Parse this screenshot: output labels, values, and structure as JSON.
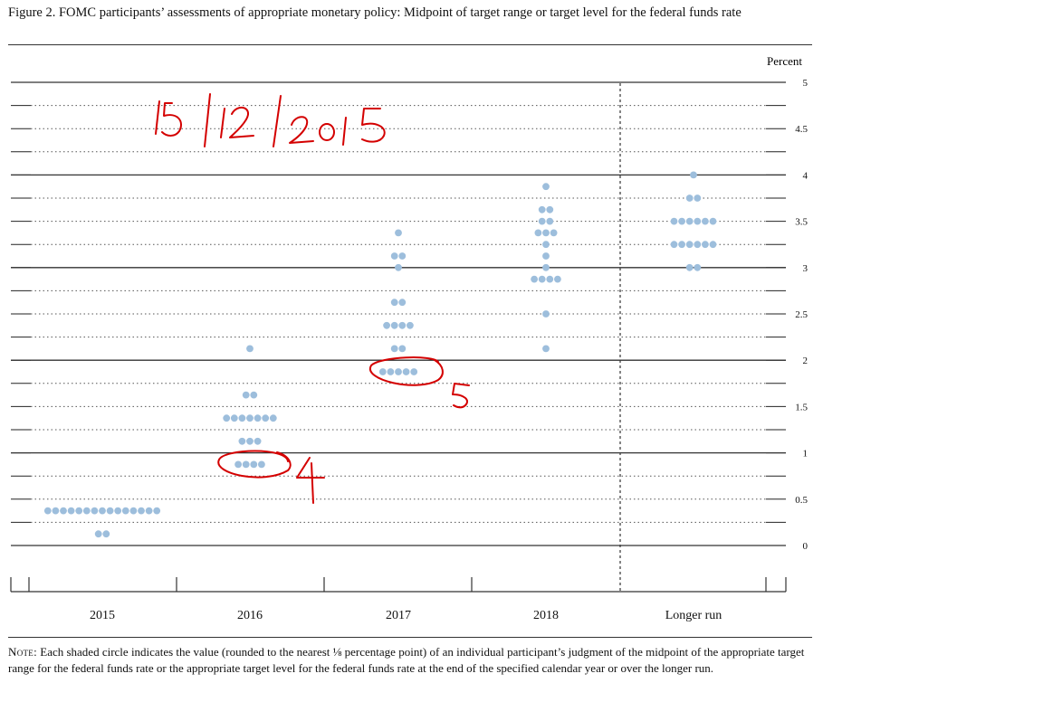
{
  "figure": {
    "title": "Figure 2. FOMC participants’ assessments of appropriate monetary policy: Midpoint of target range or target level for the federal funds rate",
    "note_lead": "Note:",
    "note_text": " Each shaded circle indicates the value (rounded to the nearest ⅛ percentage point) of an individual participant’s judgment of the midpoint of the appropriate target range for the federal funds rate or the appropriate target level for the federal funds rate at the end of the specified calendar year or over the longer run."
  },
  "chart_data": {
    "type": "scatter",
    "subtype": "dot-plot",
    "ylabel": "Percent",
    "ylim": [
      0,
      5
    ],
    "yticks": [
      0,
      0.5,
      1,
      1.5,
      2,
      2.5,
      3,
      3.5,
      4,
      4.5,
      5
    ],
    "ytick_labels": [
      "0",
      "0.5",
      "1",
      "1.5",
      "2",
      "2.5",
      "3",
      "3.5",
      "4",
      "4.5",
      "5"
    ],
    "categories": [
      "2015",
      "2016",
      "2017",
      "2018",
      "Longer run"
    ],
    "grid": "dotted lines at every 0.25, solid lines at whole numbers",
    "dot_color": "#9dbedc",
    "series": [
      {
        "category": "2015",
        "points": [
          {
            "y": 0.125,
            "count": 2
          },
          {
            "y": 0.375,
            "count": 15
          }
        ]
      },
      {
        "category": "2016",
        "points": [
          {
            "y": 0.875,
            "count": 4
          },
          {
            "y": 1.125,
            "count": 3
          },
          {
            "y": 1.375,
            "count": 7
          },
          {
            "y": 1.625,
            "count": 2
          },
          {
            "y": 2.125,
            "count": 1
          }
        ]
      },
      {
        "category": "2017",
        "points": [
          {
            "y": 1.875,
            "count": 5
          },
          {
            "y": 2.125,
            "count": 2
          },
          {
            "y": 2.375,
            "count": 4
          },
          {
            "y": 2.625,
            "count": 2
          },
          {
            "y": 3.0,
            "count": 1
          },
          {
            "y": 3.125,
            "count": 2
          },
          {
            "y": 3.375,
            "count": 1
          }
        ]
      },
      {
        "category": "2018",
        "points": [
          {
            "y": 2.125,
            "count": 1
          },
          {
            "y": 2.5,
            "count": 1
          },
          {
            "y": 2.875,
            "count": 4
          },
          {
            "y": 3.0,
            "count": 1
          },
          {
            "y": 3.125,
            "count": 1
          },
          {
            "y": 3.25,
            "count": 1
          },
          {
            "y": 3.375,
            "count": 3
          },
          {
            "y": 3.5,
            "count": 2
          },
          {
            "y": 3.625,
            "count": 2
          },
          {
            "y": 3.875,
            "count": 1
          }
        ]
      },
      {
        "category": "Longer run",
        "points": [
          {
            "y": 3.0,
            "count": 2
          },
          {
            "y": 3.25,
            "count": 6
          },
          {
            "y": 3.5,
            "count": 6
          },
          {
            "y": 3.75,
            "count": 2
          },
          {
            "y": 4.0,
            "count": 1
          }
        ]
      }
    ],
    "annotations": [
      {
        "text": "15/12/2015",
        "color": "#d40000",
        "style": "handwritten"
      },
      {
        "text": "4",
        "color": "#d40000",
        "style": "handwritten",
        "circles": {
          "category": "2016",
          "y": 0.875
        }
      },
      {
        "text": "5",
        "color": "#d40000",
        "style": "handwritten",
        "circles": {
          "category": "2017",
          "y": 1.875
        }
      }
    ]
  }
}
